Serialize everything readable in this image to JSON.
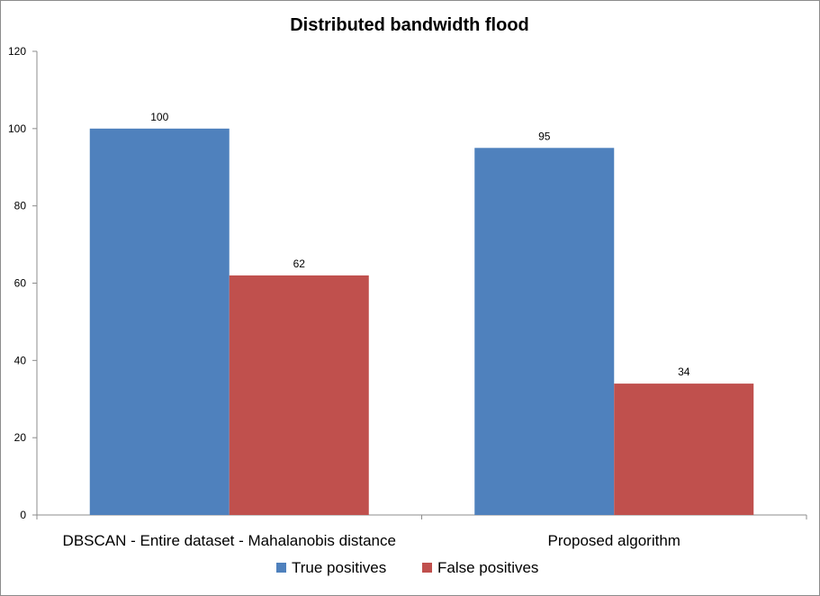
{
  "chart_data": {
    "type": "bar",
    "title": "Distributed bandwidth flood",
    "xlabel": "",
    "ylabel": "",
    "categories": [
      "DBSCAN - Entire dataset - Mahalanobis distance",
      "Proposed algorithm"
    ],
    "series": [
      {
        "name": "True positives",
        "values": [
          100,
          95
        ],
        "color": "#4f81bd"
      },
      {
        "name": "False positives",
        "values": [
          62,
          34
        ],
        "color": "#c0504d"
      }
    ],
    "ylim": [
      0,
      120
    ],
    "yticks": [
      0,
      20,
      40,
      60,
      80,
      100,
      120
    ],
    "data_labels": true,
    "grid": false,
    "legend_position": "bottom"
  }
}
